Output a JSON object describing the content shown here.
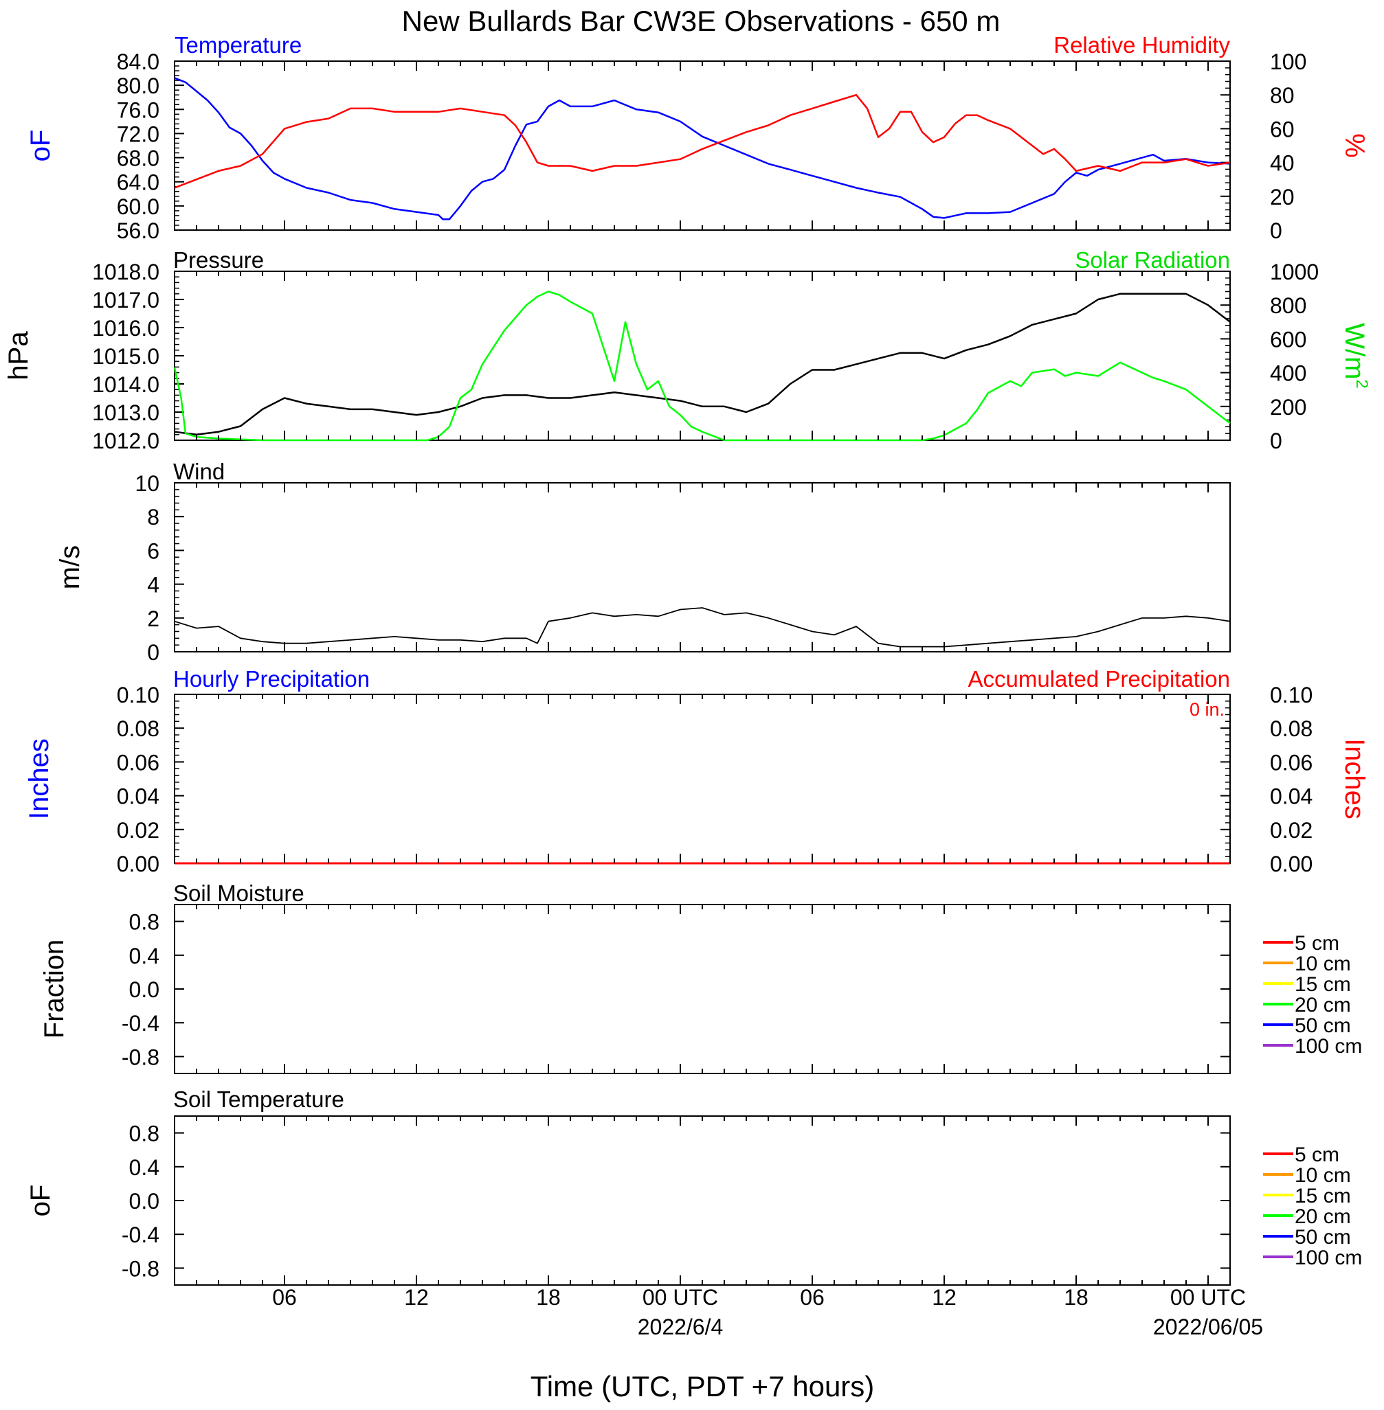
{
  "title": "New Bullards Bar CW3E Observations - 650 m",
  "xlabel": "Time (UTC, PDT +7 hours)",
  "time_axis": {
    "range_hours": [
      0,
      48
    ],
    "ticks": [
      {
        "h": 5,
        "label": "06",
        "date": ""
      },
      {
        "h": 11,
        "label": "12",
        "date": ""
      },
      {
        "h": 17,
        "label": "18",
        "date": ""
      },
      {
        "h": 23,
        "label": "00 UTC",
        "date": "2022/6/4"
      },
      {
        "h": 29,
        "label": "06",
        "date": ""
      },
      {
        "h": 35,
        "label": "12",
        "date": ""
      },
      {
        "h": 41,
        "label": "18",
        "date": ""
      },
      {
        "h": 47,
        "label": "00 UTC",
        "date": "2022/06/05"
      }
    ]
  },
  "colors": {
    "temperature": "#0000ff",
    "humidity": "#ff0000",
    "pressure": "#000000",
    "solar": "#00ff00",
    "wind": "#000000",
    "wind_barb": "#ff0000",
    "precip_hourly": "#0000ff",
    "precip_accum": "#ff0000"
  },
  "panels": {
    "temp_rh": {
      "left_title": "Temperature",
      "right_title": "Relative Humidity",
      "left_ylabel": "oF",
      "right_ylabel": "%",
      "left_ticks": [
        "84.0",
        "80.0",
        "76.0",
        "72.0",
        "68.0",
        "64.0",
        "60.0",
        "56.0"
      ],
      "right_ticks": [
        "100",
        "80",
        "60",
        "40",
        "20",
        "0"
      ]
    },
    "pressure_solar": {
      "left_title": "Pressure",
      "right_title": "Solar Radiation",
      "left_ylabel": "hPa",
      "right_ylabel": "W/m2",
      "left_ticks": [
        "1018.0",
        "1017.0",
        "1016.0",
        "1015.0",
        "1014.0",
        "1013.0",
        "1012.0"
      ],
      "right_ticks": [
        "1000",
        "800",
        "600",
        "400",
        "200",
        "0"
      ]
    },
    "wind": {
      "left_title": "Wind",
      "left_ylabel": "m/s",
      "left_ticks": [
        "10",
        "8",
        "6",
        "4",
        "2",
        "0"
      ]
    },
    "precip": {
      "left_title": "Hourly Precipitation",
      "right_title": "Accumulated Precipitation",
      "accum_text": "0 in.",
      "left_ylabel": "Inches",
      "right_ylabel": "Inches",
      "left_ticks": [
        "0.10",
        "0.08",
        "0.06",
        "0.04",
        "0.02",
        "0.00"
      ],
      "right_ticks": [
        "0.10",
        "0.08",
        "0.06",
        "0.04",
        "0.02",
        "0.00"
      ]
    },
    "soil_moisture": {
      "left_title": "Soil Moisture",
      "left_ylabel": "Fraction",
      "left_ticks": [
        "0.8",
        "0.4",
        "0.0",
        "-0.4",
        "-0.8"
      ],
      "legend": [
        {
          "label": "5 cm",
          "color": "#ff0000"
        },
        {
          "label": "10 cm",
          "color": "#ff9900"
        },
        {
          "label": "15 cm",
          "color": "#ffff00"
        },
        {
          "label": "20 cm",
          "color": "#00ff00"
        },
        {
          "label": "50 cm",
          "color": "#0000ff"
        },
        {
          "label": "100 cm",
          "color": "#9933cc"
        }
      ]
    },
    "soil_temp": {
      "left_title": "Soil Temperature",
      "left_ylabel": "oF",
      "left_ticks": [
        "0.8",
        "0.4",
        "0.0",
        "-0.4",
        "-0.8"
      ],
      "legend": [
        {
          "label": "5 cm",
          "color": "#ff0000"
        },
        {
          "label": "10 cm",
          "color": "#ff9900"
        },
        {
          "label": "15 cm",
          "color": "#ffff00"
        },
        {
          "label": "20 cm",
          "color": "#00ff00"
        },
        {
          "label": "50 cm",
          "color": "#0000ff"
        },
        {
          "label": "100 cm",
          "color": "#9933cc"
        }
      ]
    }
  },
  "chart_data": [
    {
      "type": "line",
      "x_unit": "hours since 2022/6/3 01 UTC",
      "xlim": [
        0,
        48
      ],
      "ylim_left": [
        56,
        84
      ],
      "ylim_right": [
        0,
        100
      ],
      "series": [
        {
          "name": "Temperature",
          "axis": "left",
          "x": [
            0,
            0.5,
            1,
            1.5,
            2,
            2.5,
            3,
            3.5,
            4,
            4.5,
            5,
            6,
            7,
            8,
            9,
            10,
            11,
            12,
            12.2,
            12.5,
            13,
            13.5,
            14,
            14.5,
            15,
            15.5,
            16,
            16.5,
            17,
            17.5,
            18,
            19,
            20,
            21,
            22,
            23,
            24,
            25,
            26,
            27,
            28,
            29,
            30,
            31,
            32,
            33,
            33.5,
            34,
            34.5,
            35,
            36,
            37,
            38,
            39,
            40,
            40.5,
            41,
            41.5,
            42,
            43,
            44,
            44.5,
            45,
            46,
            47,
            48
          ],
          "y": [
            81.2,
            80.5,
            79,
            77.5,
            75.5,
            73,
            72,
            70,
            67.5,
            65.5,
            64.5,
            63,
            62.2,
            61,
            60.5,
            59.5,
            59,
            58.5,
            57.8,
            57.8,
            60,
            62.5,
            64,
            64.5,
            66,
            70,
            73.5,
            74,
            76.5,
            77.5,
            76.5,
            76.5,
            77.5,
            76,
            75.5,
            74,
            71.5,
            70,
            68.5,
            67,
            66,
            65,
            64,
            63,
            62.2,
            61.5,
            60.5,
            59.5,
            58.2,
            58,
            58.8,
            58.8,
            59,
            60.5,
            62,
            64,
            65.5,
            65,
            66,
            67,
            68,
            68.5,
            67.5,
            67.8,
            67.2,
            67
          ]
        },
        {
          "name": "Relative Humidity",
          "axis": "right",
          "x": [
            0,
            1,
            2,
            3,
            4,
            5,
            6,
            7,
            8,
            9,
            10,
            11,
            12,
            13,
            14,
            15,
            15.5,
            16,
            16.5,
            17,
            18,
            19,
            20,
            21,
            22,
            23,
            24,
            25,
            26,
            27,
            28,
            29,
            30,
            31,
            31.5,
            32,
            32.5,
            33,
            33.5,
            34,
            34.5,
            35,
            35.5,
            36,
            36.5,
            37,
            38,
            39,
            39.5,
            40,
            40.5,
            41,
            42,
            43,
            44,
            45,
            46,
            47,
            48
          ],
          "y": [
            25,
            30,
            35,
            38,
            45,
            60,
            64,
            66,
            72,
            72,
            70,
            70,
            70,
            72,
            70,
            68,
            62,
            52,
            40,
            38,
            38,
            35,
            38,
            38,
            40,
            42,
            48,
            53,
            58,
            62,
            68,
            72,
            76,
            80,
            72,
            55,
            60,
            70,
            70,
            58,
            52,
            55,
            63,
            68,
            68,
            65,
            60,
            50,
            45,
            48,
            42,
            35,
            38,
            35,
            40,
            40,
            42,
            38,
            40
          ]
        }
      ]
    },
    {
      "type": "line",
      "x_unit": "hours since 2022/6/3 01 UTC",
      "xlim": [
        0,
        48
      ],
      "ylim_left": [
        1012,
        1018
      ],
      "ylim_right": [
        0,
        1000
      ],
      "series": [
        {
          "name": "Pressure",
          "axis": "left",
          "x": [
            0,
            1,
            2,
            3,
            4,
            5,
            6,
            7,
            8,
            9,
            10,
            11,
            12,
            13,
            14,
            15,
            16,
            17,
            18,
            19,
            20,
            21,
            22,
            23,
            24,
            25,
            26,
            27,
            28,
            29,
            30,
            31,
            32,
            33,
            34,
            35,
            36,
            37,
            38,
            39,
            40,
            41,
            42,
            43,
            44,
            45,
            46,
            47,
            48
          ],
          "y": [
            1012.3,
            1012.2,
            1012.3,
            1012.5,
            1013.1,
            1013.5,
            1013.3,
            1013.2,
            1013.1,
            1013.1,
            1013.0,
            1012.9,
            1013.0,
            1013.2,
            1013.5,
            1013.6,
            1013.6,
            1013.5,
            1013.5,
            1013.6,
            1013.7,
            1013.6,
            1013.5,
            1013.4,
            1013.2,
            1013.2,
            1013.0,
            1013.3,
            1014.0,
            1014.5,
            1014.5,
            1014.7,
            1014.9,
            1015.1,
            1015.1,
            1014.9,
            1015.2,
            1015.4,
            1015.7,
            1016.1,
            1016.3,
            1016.5,
            1017.0,
            1017.2,
            1017.2,
            1017.2,
            1017.2,
            1016.8,
            1016.2
          ]
        },
        {
          "name": "Solar Radiation",
          "axis": "right",
          "x": [
            0,
            0.3,
            0.5,
            1,
            2,
            3,
            4,
            5,
            6,
            7,
            8,
            9,
            10,
            11,
            11.5,
            12,
            12.5,
            13,
            13.5,
            14,
            15,
            16,
            16.5,
            17,
            17.5,
            18,
            19,
            20,
            20.5,
            21,
            21.5,
            22,
            22.5,
            23,
            23.5,
            24,
            25,
            26,
            27,
            28,
            29,
            30,
            31,
            32,
            33,
            34,
            34.5,
            35,
            36,
            36.5,
            37,
            38,
            38.5,
            39,
            40,
            40.5,
            41,
            42,
            43,
            44,
            44.5,
            45,
            46,
            47,
            48
          ],
          "y": [
            430,
            250,
            40,
            20,
            10,
            5,
            0,
            0,
            0,
            0,
            0,
            0,
            0,
            0,
            0,
            20,
            80,
            250,
            300,
            450,
            650,
            800,
            850,
            880,
            860,
            820,
            750,
            350,
            700,
            450,
            300,
            350,
            200,
            150,
            80,
            50,
            0,
            0,
            0,
            0,
            0,
            0,
            0,
            0,
            0,
            0,
            10,
            30,
            100,
            180,
            280,
            350,
            320,
            400,
            420,
            380,
            400,
            380,
            460,
            400,
            370,
            350,
            300,
            200,
            100
          ]
        }
      ]
    },
    {
      "type": "line",
      "x_unit": "hours since 2022/6/3 01 UTC",
      "xlim": [
        0,
        48
      ],
      "ylim": [
        0,
        10
      ],
      "series": [
        {
          "name": "Wind",
          "x": [
            0,
            1,
            2,
            3,
            4,
            5,
            6,
            7,
            8,
            9,
            10,
            11,
            12,
            13,
            14,
            15,
            16,
            16.5,
            17,
            18,
            19,
            20,
            21,
            22,
            23,
            24,
            25,
            26,
            27,
            28,
            29,
            30,
            31,
            32,
            33,
            34,
            35,
            36,
            37,
            38,
            39,
            40,
            41,
            42,
            43,
            44,
            45,
            46,
            47,
            48
          ],
          "y": [
            1.8,
            1.4,
            1.5,
            0.8,
            0.6,
            0.5,
            0.5,
            0.6,
            0.7,
            0.8,
            0.9,
            0.8,
            0.7,
            0.7,
            0.6,
            0.8,
            0.8,
            0.5,
            1.8,
            2.0,
            2.3,
            2.1,
            2.2,
            2.1,
            2.5,
            2.6,
            2.2,
            2.3,
            2.0,
            1.6,
            1.2,
            1.0,
            1.5,
            0.5,
            0.3,
            0.3,
            0.3,
            0.4,
            0.5,
            0.6,
            0.7,
            0.8,
            0.9,
            1.2,
            1.6,
            2.0,
            2.0,
            2.1,
            2.0,
            1.8
          ]
        }
      ]
    },
    {
      "type": "line",
      "x_unit": "hours since 2022/6/3 01 UTC",
      "xlim": [
        0,
        48
      ],
      "ylim": [
        0,
        0.1
      ],
      "series": [
        {
          "name": "Hourly Precipitation",
          "x": [
            0,
            48
          ],
          "y": [
            0,
            0
          ]
        },
        {
          "name": "Accumulated Precipitation",
          "x": [
            0,
            48
          ],
          "y": [
            0,
            0
          ]
        }
      ]
    }
  ]
}
